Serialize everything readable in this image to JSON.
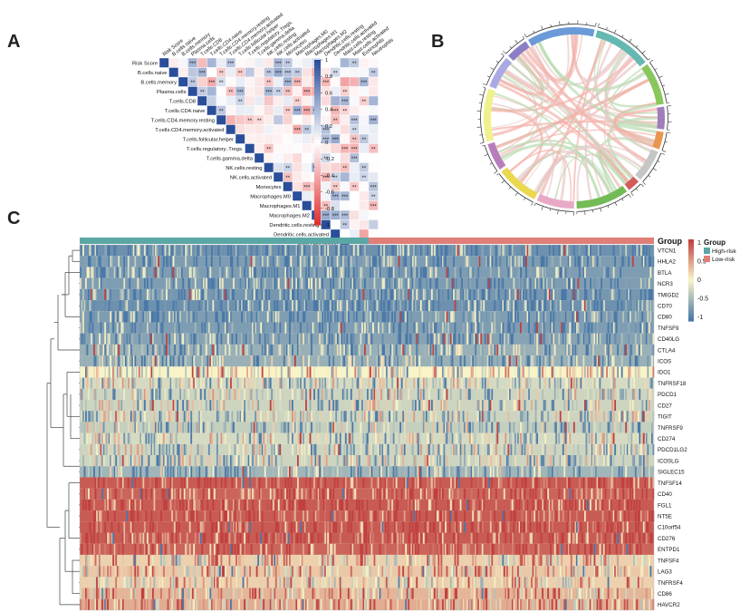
{
  "panel_labels": {
    "a": "A",
    "b": "B",
    "c": "C"
  },
  "chart_data": [
    {
      "type": "heatmap",
      "panel": "A",
      "title": "",
      "layout": "lower-triangle correlation",
      "variables": [
        "Risk Score",
        "B.cells.naive",
        "B.cells.memory",
        "Plasma.cells",
        "T.cells.CD8",
        "T.cells.CD4.naive",
        "T.cells.CD4.memory.resting",
        "T.cells.CD4.memory.activated",
        "T.cells.follicular.helper",
        "T.cells.regulatory..Tregs.",
        "T.cells.gamma.delta",
        "NK.cells.resting",
        "NK.cells.activated",
        "Monocytes",
        "Macrophages.M0",
        "Macrophages.M1",
        "Macrophages.M2",
        "Dendritic.cells.resting",
        "Dendritic.cells.activated",
        "Mast.cells.resting",
        "Mast.cells.activated",
        "Eosinophils",
        "Neutrophils"
      ],
      "colorbar": {
        "ticks": [
          "1",
          "0.8",
          "0.6",
          "0.4",
          "0.2",
          "0",
          "-0.2",
          "-0.4",
          "-0.6",
          "-0.8",
          "-1"
        ],
        "range": [
          -1,
          1
        ],
        "low_color": "#e03030",
        "mid_color": "#ffffff",
        "high_color": "#2a4e9a"
      },
      "significance_marks": [
        "*",
        "**",
        "***",
        "****"
      ]
    },
    {
      "type": "chord",
      "panel": "B",
      "title": "",
      "sector_colors": [
        "#5b8fd4",
        "#54b0a8",
        "#7cc04a",
        "#9470b4",
        "#e88a3c",
        "#c0c0c0",
        "#d04848",
        "#64b444",
        "#e4a0c0",
        "#e8d43c",
        "#b070b4",
        "#f0f080",
        "#a0a0e0",
        "#8070c0"
      ],
      "link_colors": [
        "#f4b0a8",
        "#b8dcb0",
        "#e8c8c8"
      ]
    },
    {
      "type": "heatmap",
      "panel": "C",
      "title": "",
      "annotation_label": "Group",
      "legend_title": "Group",
      "groups": [
        {
          "name": "High-risk",
          "color": "#5aa7a5"
        },
        {
          "name": "Low-risk",
          "color": "#e07e78"
        }
      ],
      "colorbar": {
        "ticks": [
          "1",
          "0.5",
          "0",
          "-0.5",
          "-1"
        ],
        "range": [
          -1,
          1
        ],
        "low_color": "#4a78a8",
        "mid_color": "#f8f4c8",
        "high_color": "#c04040"
      },
      "genes": [
        "VTCN1",
        "HHLA2",
        "BTLA",
        "NCR3",
        "TMIGD2",
        "CD70",
        "CD80",
        "TNFSF9",
        "CD40LG",
        "CTLA4",
        "ICOS",
        "IDO1",
        "TNFRSF18",
        "PDCD1",
        "CD27",
        "TIGIT",
        "TNFRSF9",
        "CD274",
        "PDCD1LG2",
        "ICOSLG",
        "SIGLEC15",
        "TNFSF14",
        "CD40",
        "FGL1",
        "NT5E",
        "C10orf54",
        "CD276",
        "ENTPD1",
        "TNFSF4",
        "LAG3",
        "TNFRSF4",
        "CD86",
        "HAVCR2"
      ],
      "row_mean_expression": [
        -0.8,
        -0.7,
        -0.7,
        -0.7,
        -0.75,
        -0.8,
        -0.7,
        -0.7,
        -0.65,
        -0.55,
        -0.55,
        0.0,
        -0.2,
        -0.25,
        -0.25,
        -0.25,
        -0.3,
        -0.2,
        -0.25,
        -0.25,
        -0.5,
        0.85,
        0.8,
        0.85,
        0.85,
        0.85,
        0.85,
        0.8,
        0.2,
        0.25,
        0.2,
        0.35,
        0.4
      ]
    }
  ]
}
